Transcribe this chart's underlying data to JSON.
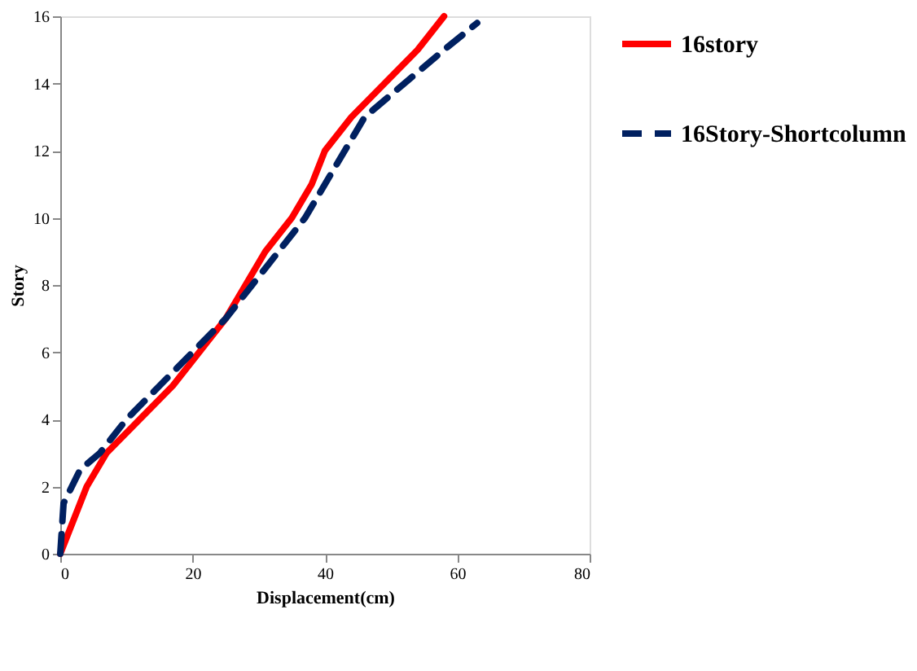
{
  "chart_data": {
    "type": "line",
    "xlabel": "Displacement(cm)",
    "ylabel": "Story",
    "xlim": [
      0,
      80
    ],
    "xticks": [
      0,
      20,
      40,
      60,
      80
    ],
    "ylim": [
      0,
      16
    ],
    "yticks": [
      0,
      2,
      4,
      6,
      8,
      10,
      12,
      14,
      16
    ],
    "grid": false,
    "legend": "right",
    "marker": "none",
    "series": [
      {
        "name": "16story",
        "color": "#ff0000",
        "line_style": "solid",
        "x": [
          0,
          2,
          4,
          7,
          12,
          17,
          21,
          25,
          28,
          31,
          35,
          38,
          40,
          44,
          49,
          54,
          58
        ],
        "values": [
          0,
          1,
          2,
          3,
          4,
          5,
          6,
          7,
          8,
          9,
          10,
          11,
          12,
          13,
          14,
          15,
          16
        ]
      },
      {
        "name": "16Story-Shortcolumn",
        "color": "#002060",
        "line_style": "dashed",
        "x": [
          0,
          0.5,
          3,
          6,
          10,
          15,
          20,
          25,
          29,
          33,
          37,
          40,
          43,
          46,
          52,
          58,
          63
        ],
        "values": [
          0,
          1.5,
          2.5,
          3,
          4,
          5,
          6,
          7,
          8,
          9,
          10,
          11,
          12,
          13,
          14,
          15,
          15.8
        ]
      }
    ]
  }
}
